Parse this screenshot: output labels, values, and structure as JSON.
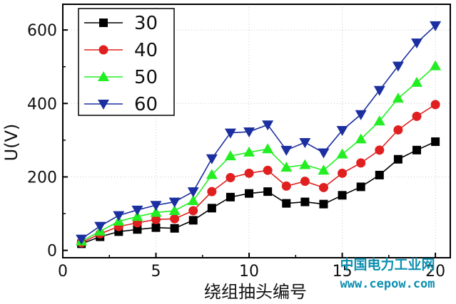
{
  "chart_data": {
    "type": "line",
    "xlabel": "绕组抽头编号",
    "ylabel": "U(V)",
    "xlim": [
      0,
      20.8
    ],
    "ylim": [
      -20,
      670
    ],
    "x_ticks": [
      0,
      5,
      10,
      15,
      20
    ],
    "y_ticks": [
      0,
      200,
      400,
      600
    ],
    "grid": true,
    "legend_position": "top-left",
    "x": [
      1,
      2,
      3,
      4,
      5,
      6,
      7,
      8,
      9,
      10,
      11,
      12,
      13,
      14,
      15,
      16,
      17,
      18,
      19,
      20
    ],
    "series": [
      {
        "name": "30",
        "color": "#000000",
        "marker": "square",
        "values": [
          18,
          37,
          51,
          57,
          62,
          60,
          82,
          115,
          145,
          155,
          160,
          128,
          132,
          126,
          150,
          173,
          205,
          248,
          273,
          296
        ]
      },
      {
        "name": "40",
        "color": "#e02020",
        "marker": "circle",
        "values": [
          21,
          45,
          65,
          75,
          84,
          86,
          108,
          160,
          198,
          210,
          218,
          175,
          188,
          171,
          210,
          238,
          273,
          328,
          365,
          397
        ]
      },
      {
        "name": "50",
        "color": "#22ee22",
        "marker": "triangle-up",
        "values": [
          25,
          52,
          79,
          92,
          103,
          108,
          135,
          206,
          257,
          267,
          276,
          226,
          233,
          218,
          262,
          303,
          352,
          414,
          457,
          502
        ]
      },
      {
        "name": "60",
        "color": "#1c2fa0",
        "marker": "triangle-down",
        "values": [
          31,
          66,
          95,
          110,
          123,
          132,
          160,
          250,
          320,
          323,
          342,
          273,
          294,
          266,
          327,
          370,
          436,
          502,
          565,
          612
        ]
      }
    ]
  },
  "watermark": {
    "cn": "中国电力工业网",
    "url": "www.cepow.com",
    "color": "#0e8fb0"
  }
}
